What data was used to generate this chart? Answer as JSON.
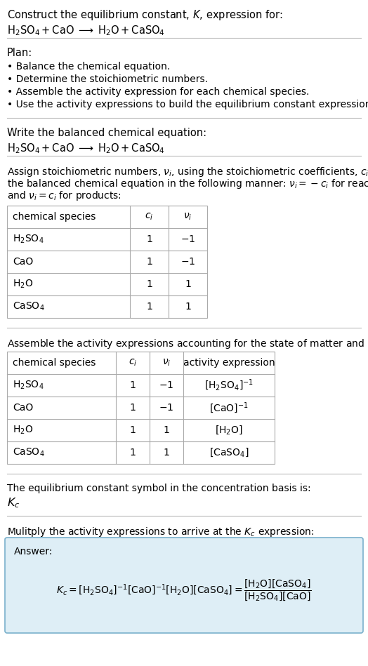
{
  "title_line1": "Construct the equilibrium constant, $K$, expression for:",
  "title_line2": "$\\mathrm{H_2SO_4 + CaO \\;\\longrightarrow\\; H_2O + CaSO_4}$",
  "plan_header": "Plan:",
  "plan_bullets": [
    "• Balance the chemical equation.",
    "• Determine the stoichiometric numbers.",
    "• Assemble the activity expression for each chemical species.",
    "• Use the activity expressions to build the equilibrium constant expression."
  ],
  "section2_header": "Write the balanced chemical equation:",
  "section2_eq": "$\\mathrm{H_2SO_4 + CaO \\;\\longrightarrow\\; H_2O + CaSO_4}$",
  "section3_header_parts": [
    "Assign stoichiometric numbers, $\\nu_i$, using the stoichiometric coefficients, $c_i$, from",
    "the balanced chemical equation in the following manner: $\\nu_i = -c_i$ for reactants",
    "and $\\nu_i = c_i$ for products:"
  ],
  "table1_headers": [
    "chemical species",
    "$c_i$",
    "$\\nu_i$"
  ],
  "table1_rows": [
    [
      "$\\mathrm{H_2SO_4}$",
      "1",
      "$-1$"
    ],
    [
      "CaO",
      "1",
      "$-1$"
    ],
    [
      "$\\mathrm{H_2O}$",
      "1",
      "1"
    ],
    [
      "$\\mathrm{CaSO_4}$",
      "1",
      "1"
    ]
  ],
  "section4_header": "Assemble the activity expressions accounting for the state of matter and $\\nu_i$:",
  "table2_headers": [
    "chemical species",
    "$c_i$",
    "$\\nu_i$",
    "activity expression"
  ],
  "table2_rows": [
    [
      "$\\mathrm{H_2SO_4}$",
      "1",
      "$-1$",
      "$[\\mathrm{H_2SO_4}]^{-1}$"
    ],
    [
      "CaO",
      "1",
      "$-1$",
      "$[\\mathrm{CaO}]^{-1}$"
    ],
    [
      "$\\mathrm{H_2O}$",
      "1",
      "1",
      "$[\\mathrm{H_2O}]$"
    ],
    [
      "$\\mathrm{CaSO_4}$",
      "1",
      "1",
      "$[\\mathrm{CaSO_4}]$"
    ]
  ],
  "section5_header": "The equilibrium constant symbol in the concentration basis is:",
  "section5_symbol": "$K_c$",
  "section6_header": "Mulitply the activity expressions to arrive at the $K_c$ expression:",
  "answer_label": "Answer:",
  "bg_color": "#ffffff",
  "text_color": "#000000",
  "table_border_color": "#aaaaaa",
  "answer_bg_color": "#deeef6",
  "answer_border_color": "#7ab0cc",
  "divider_color": "#bbbbbb",
  "font_size": 10.5,
  "fig_width": 5.24,
  "fig_height": 9.49
}
